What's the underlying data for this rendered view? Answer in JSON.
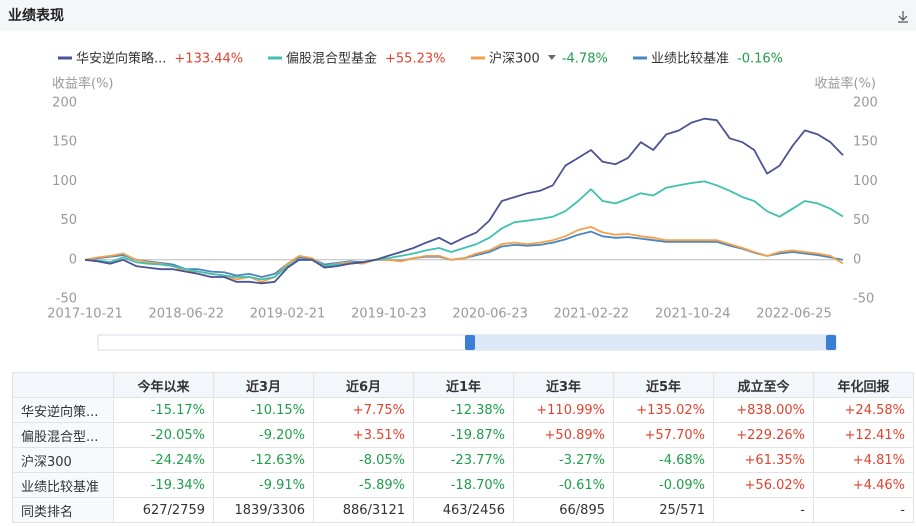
{
  "header": {
    "title": "业绩表现"
  },
  "chart_data": {
    "type": "line",
    "y_label": "收益率(%)",
    "x": [
      "2017-10-21",
      "2017-11-21",
      "2017-12-21",
      "2018-01-21",
      "2018-02-21",
      "2018-03-21",
      "2018-04-21",
      "2018-05-21",
      "2018-06-21",
      "2018-07-21",
      "2018-08-21",
      "2018-09-21",
      "2018-10-21",
      "2018-11-21",
      "2018-12-21",
      "2019-01-21",
      "2019-02-21",
      "2019-03-21",
      "2019-04-21",
      "2019-05-21",
      "2019-06-21",
      "2019-07-21",
      "2019-08-21",
      "2019-09-21",
      "2019-10-21",
      "2019-11-21",
      "2019-12-21",
      "2020-01-21",
      "2020-02-21",
      "2020-03-21",
      "2020-04-21",
      "2020-05-21",
      "2020-06-21",
      "2020-07-21",
      "2020-08-21",
      "2020-09-21",
      "2020-10-21",
      "2020-11-21",
      "2020-12-21",
      "2021-01-21",
      "2021-02-21",
      "2021-03-21",
      "2021-04-21",
      "2021-05-21",
      "2021-06-21",
      "2021-07-21",
      "2021-08-21",
      "2021-09-21",
      "2021-10-21",
      "2021-11-21",
      "2021-12-21",
      "2022-01-21",
      "2022-02-21",
      "2022-03-21",
      "2022-04-21",
      "2022-05-21",
      "2022-06-21",
      "2022-07-21",
      "2022-08-21",
      "2022-09-21",
      "2022-10-21"
    ],
    "xlim": [
      "2017-10-21",
      "2022-10-21"
    ],
    "xticks": [
      "2017-10-21",
      "2018-06-22",
      "2019-02-21",
      "2019-10-23",
      "2020-06-23",
      "2021-02-22",
      "2021-10-24",
      "2022-06-25"
    ],
    "ylim": [
      -50,
      200
    ],
    "yticks": [
      -50,
      0,
      50,
      100,
      150,
      200
    ],
    "y2lim": [
      -50,
      200
    ],
    "y2ticks": [
      -50,
      0,
      50,
      100,
      150,
      200
    ],
    "grid": false,
    "series": [
      {
        "name": "华安逆向策略...",
        "color": "#4b5394",
        "change": {
          "value": 133.44,
          "label": "+133.44%"
        },
        "values": [
          0,
          -2,
          -5,
          0,
          -8,
          -10,
          -12,
          -12,
          -15,
          -18,
          -22,
          -22,
          -28,
          -28,
          -30,
          -28,
          -10,
          0,
          0,
          -10,
          -8,
          -5,
          -3,
          0,
          5,
          10,
          15,
          22,
          28,
          20,
          28,
          35,
          50,
          75,
          80,
          85,
          88,
          95,
          120,
          130,
          140,
          125,
          122,
          130,
          150,
          140,
          160,
          165,
          175,
          180,
          178,
          155,
          150,
          140,
          110,
          120,
          145,
          165,
          160,
          150,
          133.44
        ]
      },
      {
        "name": "偏股混合型基金",
        "color": "#3ec1b1",
        "change": {
          "value": 55.23,
          "label": "+55.23%"
        },
        "values": [
          0,
          -1,
          -3,
          3,
          -3,
          -5,
          -6,
          -8,
          -12,
          -15,
          -18,
          -20,
          -22,
          -22,
          -25,
          -22,
          -8,
          0,
          0,
          -8,
          -6,
          -5,
          -3,
          0,
          2,
          5,
          8,
          12,
          15,
          10,
          15,
          20,
          28,
          40,
          48,
          50,
          52,
          55,
          62,
          75,
          90,
          75,
          72,
          78,
          85,
          82,
          92,
          95,
          98,
          100,
          95,
          88,
          80,
          75,
          62,
          55,
          65,
          75,
          72,
          65,
          55.23
        ]
      },
      {
        "name": "沪深300",
        "color": "#f5a04a",
        "change": {
          "value": -4.78,
          "label": "-4.78%"
        },
        "values": [
          0,
          3,
          5,
          8,
          0,
          -3,
          -5,
          -8,
          -15,
          -15,
          -18,
          -20,
          -25,
          -22,
          -28,
          -22,
          -5,
          5,
          2,
          -8,
          -5,
          -3,
          -5,
          0,
          0,
          -2,
          2,
          5,
          5,
          0,
          2,
          8,
          12,
          20,
          22,
          20,
          22,
          25,
          30,
          38,
          42,
          35,
          32,
          33,
          30,
          28,
          25,
          25,
          25,
          25,
          25,
          20,
          15,
          10,
          5,
          10,
          12,
          10,
          8,
          5,
          -4.78
        ]
      },
      {
        "name": "业绩比较基准",
        "color": "#4a86c0",
        "change": {
          "value": -0.16,
          "label": "-0.16%"
        },
        "values": [
          0,
          2,
          4,
          6,
          0,
          -2,
          -4,
          -6,
          -12,
          -12,
          -15,
          -16,
          -20,
          -18,
          -22,
          -18,
          -5,
          3,
          1,
          -6,
          -4,
          -2,
          -3,
          0,
          0,
          -1,
          2,
          4,
          4,
          0,
          2,
          6,
          10,
          17,
          19,
          18,
          19,
          22,
          26,
          32,
          36,
          30,
          28,
          29,
          27,
          25,
          23,
          23,
          23,
          23,
          23,
          18,
          14,
          9,
          5,
          8,
          10,
          8,
          6,
          3,
          -0.16
        ]
      }
    ]
  },
  "table": {
    "columns": [
      "今年以来",
      "近3月",
      "近6月",
      "近1年",
      "近3年",
      "近5年",
      "成立至今",
      "年化回报"
    ],
    "rows": [
      [
        "华安逆向策...",
        "-15.17%",
        "-10.15%",
        "+7.75%",
        "-12.38%",
        "+110.99%",
        "+135.02%",
        "+838.00%",
        "+24.58%"
      ],
      [
        "偏股混合型...",
        "-20.05%",
        "-9.20%",
        "+3.51%",
        "-19.87%",
        "+50.89%",
        "+57.70%",
        "+229.26%",
        "+12.41%"
      ],
      [
        "沪深300",
        "-24.24%",
        "-12.63%",
        "-8.05%",
        "-23.77%",
        "-3.27%",
        "-4.68%",
        "+61.35%",
        "+4.81%"
      ],
      [
        "业绩比较基准",
        "-19.34%",
        "-9.91%",
        "-5.89%",
        "-18.70%",
        "-0.61%",
        "-0.09%",
        "+56.02%",
        "+4.46%"
      ],
      [
        "同类排名",
        "627/2759",
        "1839/3306",
        "886/3121",
        "463/2456",
        "66/895",
        "25/571",
        "-",
        "-"
      ]
    ]
  }
}
